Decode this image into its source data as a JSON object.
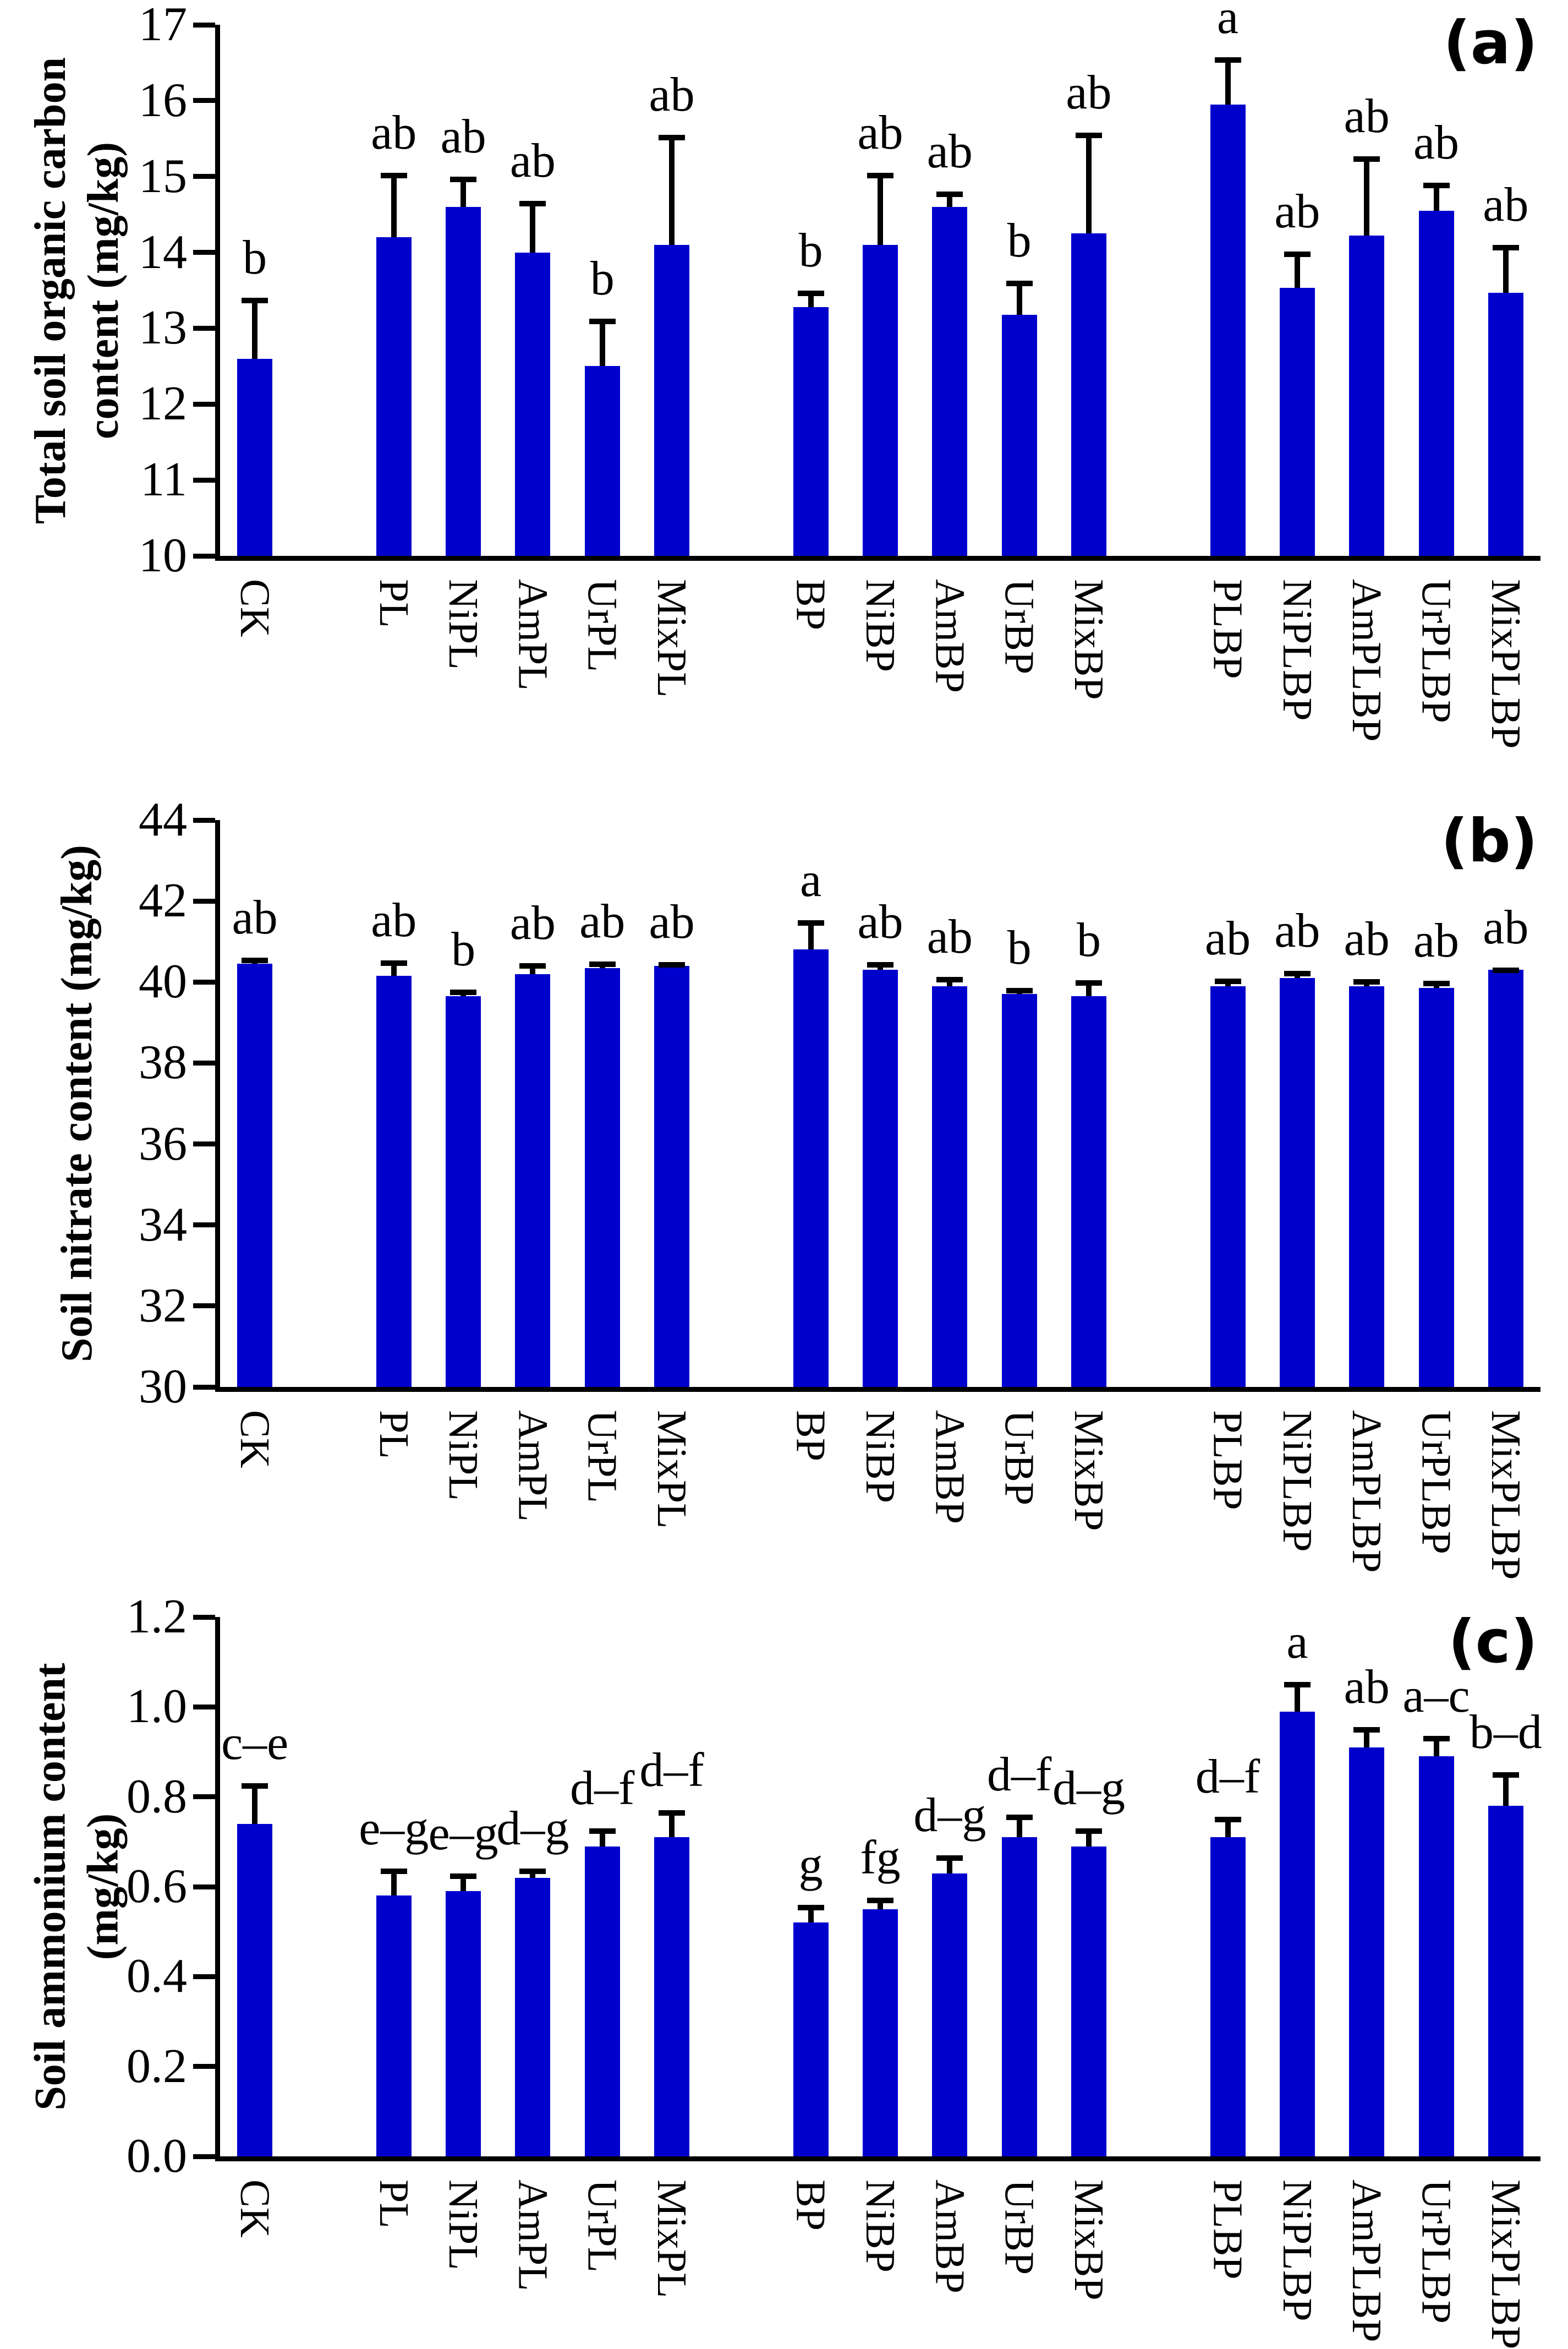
{
  "figure": {
    "background": "#ffffff",
    "bar_color": "#0000cd",
    "axis_color": "#000000",
    "error_bar_color": "#000000",
    "text_color": "#000000"
  },
  "bar_slots": {
    "slot_indices": [
      0,
      2,
      3,
      4,
      5,
      6,
      8,
      9,
      10,
      11,
      12,
      14,
      15,
      16,
      17,
      18
    ],
    "total_slots": 19
  },
  "chart_data": [
    {
      "id": "a",
      "type": "bar",
      "panel_label": "(a)",
      "ylabel": "Total soil organic carbon content (mg/kg)",
      "ylabel_lines": [
        "Total soil organic carbon",
        "content (mg/kg)"
      ],
      "ylim": [
        10,
        17
      ],
      "yticks": [
        17,
        16,
        15,
        14,
        13,
        12,
        11,
        10
      ],
      "ytick_labels": [
        "17",
        "16",
        "15",
        "14",
        "13",
        "12",
        "11",
        "10"
      ],
      "grid": false,
      "legend": null,
      "categories": [
        "CK",
        "PL",
        "NiPL",
        "AmPL",
        "UrPL",
        "MixPL",
        "BP",
        "NiBP",
        "AmBP",
        "UrBP",
        "MixBP",
        "PLBP",
        "NiPLBP",
        "AmPLBP",
        "UrPLBP",
        "MixPLBP"
      ],
      "values": [
        12.6,
        14.2,
        14.6,
        14.0,
        12.5,
        14.1,
        13.28,
        14.1,
        14.6,
        13.18,
        14.25,
        15.95,
        13.53,
        14.22,
        14.55,
        13.47
      ],
      "errors": [
        0.8,
        0.85,
        0.4,
        0.68,
        0.63,
        1.45,
        0.22,
        0.95,
        0.2,
        0.45,
        1.33,
        0.62,
        0.48,
        1.05,
        0.37,
        0.63
      ],
      "sig_letters": [
        "b",
        "ab",
        "ab",
        "ab",
        "b",
        "ab",
        "b",
        "ab",
        "ab",
        "b",
        "ab",
        "a",
        "ab",
        "ab",
        "ab",
        "ab"
      ]
    },
    {
      "id": "b",
      "type": "bar",
      "panel_label": "(b)",
      "ylabel": "Soil nitrate content (mg/kg)",
      "ylabel_lines": [
        "Soil nitrate content (mg/kg)"
      ],
      "ylim": [
        30,
        44
      ],
      "yticks": [
        44,
        42,
        40,
        38,
        36,
        34,
        32,
        30
      ],
      "ytick_labels": [
        "44",
        "42",
        "40",
        "38",
        "36",
        "34",
        "32",
        "30"
      ],
      "grid": false,
      "legend": null,
      "categories": [
        "CK",
        "PL",
        "NiPL",
        "AmPL",
        "UrPL",
        "MixPL",
        "BP",
        "NiBP",
        "AmBP",
        "UrBP",
        "MixBP",
        "PLBP",
        "NiPLBP",
        "AmPLBP",
        "UrPLBP",
        "MixPLBP"
      ],
      "values": [
        40.45,
        40.15,
        39.65,
        40.2,
        40.35,
        40.4,
        40.8,
        40.3,
        39.9,
        39.7,
        39.65,
        39.9,
        40.1,
        39.9,
        39.85,
        40.3
      ],
      "errors": [
        0.15,
        0.38,
        0.17,
        0.26,
        0.16,
        0.1,
        0.72,
        0.2,
        0.22,
        0.15,
        0.4,
        0.18,
        0.18,
        0.17,
        0.18,
        0.06
      ],
      "sig_letters": [
        "ab",
        "ab",
        "b",
        "ab",
        "ab",
        "ab",
        "a",
        "ab",
        "ab",
        "b",
        "b",
        "ab",
        "ab",
        "ab",
        "ab",
        "ab"
      ]
    },
    {
      "id": "c",
      "type": "bar",
      "panel_label": "(c)",
      "ylabel": "Soil ammonium content (mg/kg)",
      "ylabel_lines": [
        "Soil ammonium content",
        "(mg/kg)"
      ],
      "ylim": [
        0,
        1.2
      ],
      "yticks": [
        1.2,
        1.0,
        0.8,
        0.6,
        0.4,
        0.2,
        0.0
      ],
      "ytick_labels": [
        "1.2",
        "1.0",
        "0.8",
        "0.6",
        "0.4",
        "0.2",
        "0.0"
      ],
      "grid": false,
      "legend": null,
      "categories": [
        "CK",
        "PL",
        "NiPL",
        "AmPL",
        "UrPL",
        "MixPL",
        "BP",
        "NiBP",
        "AmBP",
        "UrBP",
        "MixBP",
        "PLBP",
        "NiPLBP",
        "AmPLBP",
        "UrPLBP",
        "MixPLBP"
      ],
      "values": [
        0.74,
        0.58,
        0.59,
        0.62,
        0.69,
        0.71,
        0.52,
        0.55,
        0.63,
        0.71,
        0.69,
        0.71,
        0.99,
        0.91,
        0.89,
        0.78
      ],
      "errors": [
        0.09,
        0.06,
        0.04,
        0.02,
        0.04,
        0.06,
        0.04,
        0.025,
        0.04,
        0.05,
        0.04,
        0.045,
        0.065,
        0.045,
        0.045,
        0.075
      ],
      "sig_letters": [
        "c–e",
        "e–g",
        "e–g",
        "d–g",
        "d–f",
        "d–f",
        "g",
        "fg",
        "d–g",
        "d–f",
        "d–g",
        "d–f",
        "a",
        "ab",
        "a–c",
        "b–d"
      ]
    }
  ]
}
